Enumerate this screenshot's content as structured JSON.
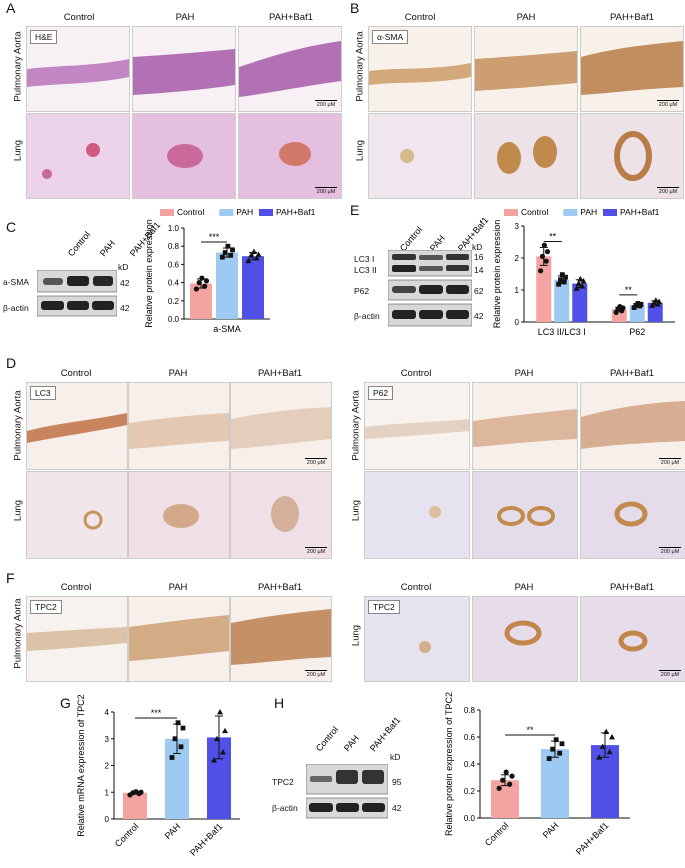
{
  "groups": [
    "Control",
    "PAH",
    "PAH+Baf1"
  ],
  "tissue_rows": [
    "Pulmonary Aorta",
    "Lung"
  ],
  "panels": {
    "A": {
      "label": "A",
      "stain": "H&E"
    },
    "B": {
      "label": "B",
      "stain": "α-SMA"
    },
    "C": {
      "label": "C",
      "blot_rows": [
        "a-SMA",
        "β-actin"
      ],
      "mw": [
        "42",
        "42"
      ],
      "kd": "kD"
    },
    "D": {
      "label": "D",
      "stains": [
        "LC3",
        "P62"
      ]
    },
    "E": {
      "label": "E",
      "blot_rows": [
        "LC3 I",
        "LC3 II",
        "P62",
        "β-actin"
      ],
      "mw": [
        "16",
        "14",
        "62",
        "42"
      ],
      "kd": "kD"
    },
    "F": {
      "label": "F",
      "stain": "TPC2",
      "stain_lung": "TPC2"
    },
    "G": {
      "label": "G"
    },
    "H": {
      "label": "H",
      "blot_rows": [
        "TPC2",
        "β-actin"
      ],
      "mw": [
        "95",
        "42"
      ],
      "kd": "kD"
    }
  },
  "scale_bar": "200 μM",
  "colors": {
    "control": "#f4a3a1",
    "pah": "#9ec9f3",
    "baf1": "#5050e8",
    "he_tissue": "#b05bb0",
    "ihc_tissue": "#c9965e",
    "lung_bg": "#efe3ef"
  },
  "chart_data": [
    {
      "type": "bar",
      "id": "C",
      "categories": [
        "a-SMA"
      ],
      "series": [
        {
          "name": "Control",
          "values": [
            0.39
          ],
          "err": [
            0.05
          ],
          "points": [
            0.33,
            0.36,
            0.4,
            0.42,
            0.45
          ]
        },
        {
          "name": "PAH",
          "values": [
            0.73
          ],
          "err": [
            0.05
          ],
          "points": [
            0.68,
            0.7,
            0.73,
            0.76,
            0.8
          ]
        },
        {
          "name": "PAH+Baf1",
          "values": [
            0.69
          ],
          "err": [
            0.04
          ],
          "points": [
            0.64,
            0.67,
            0.7,
            0.71,
            0.74
          ]
        }
      ],
      "ylabel": "Relative protein expression",
      "ylim": [
        0,
        1.0
      ],
      "yticks": [
        "0.0",
        "0.2",
        "0.4",
        "0.6",
        "0.8",
        "1.0"
      ],
      "annotations": [
        {
          "text": "***",
          "between": [
            "Control",
            "PAH"
          ]
        }
      ],
      "legend": "top"
    },
    {
      "type": "bar",
      "id": "E",
      "categories": [
        "LC3 II/LC3 I",
        "P62"
      ],
      "series": [
        {
          "name": "Control",
          "values": [
            2.05,
            0.4
          ],
          "err": [
            0.28,
            0.06
          ],
          "points": [
            [
              1.6,
              1.9,
              2.05,
              2.2,
              2.4
            ],
            [
              0.3,
              0.35,
              0.4,
              0.44,
              0.48
            ]
          ]
        },
        {
          "name": "PAH",
          "values": [
            1.32,
            0.52
          ],
          "err": [
            0.12,
            0.05
          ],
          "points": [
            [
              1.18,
              1.25,
              1.32,
              1.4,
              1.48
            ],
            [
              0.45,
              0.5,
              0.52,
              0.55,
              0.58
            ]
          ]
        },
        {
          "name": "PAH+Baf1",
          "values": [
            1.2,
            0.6
          ],
          "err": [
            0.12,
            0.06
          ],
          "points": [
            [
              1.05,
              1.12,
              1.2,
              1.28,
              1.35
            ],
            [
              0.52,
              0.56,
              0.6,
              0.64,
              0.68
            ]
          ]
        }
      ],
      "ylabel": "Relative protein expression",
      "ylim": [
        0,
        3
      ],
      "yticks": [
        "0",
        "1",
        "2",
        "3"
      ],
      "annotations": [
        {
          "text": "**",
          "category": "LC3 II/LC3 I"
        },
        {
          "text": "**",
          "category": "P62"
        }
      ],
      "legend": "top"
    },
    {
      "type": "bar",
      "id": "G",
      "categories": [
        "Control",
        "PAH",
        "PAH+Baf1"
      ],
      "series": [
        {
          "name": "",
          "values": [
            0.98,
            3.0,
            3.05
          ],
          "err": [
            0.05,
            0.55,
            0.8
          ],
          "points": [
            [
              0.9,
              0.95,
              0.98,
              1.0,
              1.02
            ],
            [
              2.3,
              2.7,
              3.0,
              3.4,
              3.6
            ],
            [
              2.2,
              2.5,
              3.0,
              3.3,
              4.0
            ]
          ]
        }
      ],
      "ylabel": "Relative mRNA expression of TPC2",
      "ylim": [
        0,
        4
      ],
      "yticks": [
        "0",
        "1",
        "2",
        "3",
        "4"
      ],
      "annotations": [
        {
          "text": "***",
          "between": [
            "Control",
            "PAH"
          ]
        }
      ]
    },
    {
      "type": "bar",
      "id": "H",
      "categories": [
        "Control",
        "PAH",
        "PAH+Baf1"
      ],
      "series": [
        {
          "name": "",
          "values": [
            0.28,
            0.51,
            0.54
          ],
          "err": [
            0.04,
            0.06,
            0.09
          ],
          "points": [
            [
              0.22,
              0.25,
              0.28,
              0.31,
              0.34
            ],
            [
              0.44,
              0.48,
              0.51,
              0.55,
              0.58
            ],
            [
              0.45,
              0.49,
              0.53,
              0.6,
              0.64
            ]
          ]
        }
      ],
      "ylabel": "Relative protein expression of TPC2",
      "ylim": [
        0,
        0.8
      ],
      "yticks": [
        "0.0",
        "0.2",
        "0.4",
        "0.6",
        "0.8"
      ],
      "annotations": [
        {
          "text": "**",
          "between": [
            "Control",
            "PAH"
          ]
        }
      ]
    }
  ]
}
